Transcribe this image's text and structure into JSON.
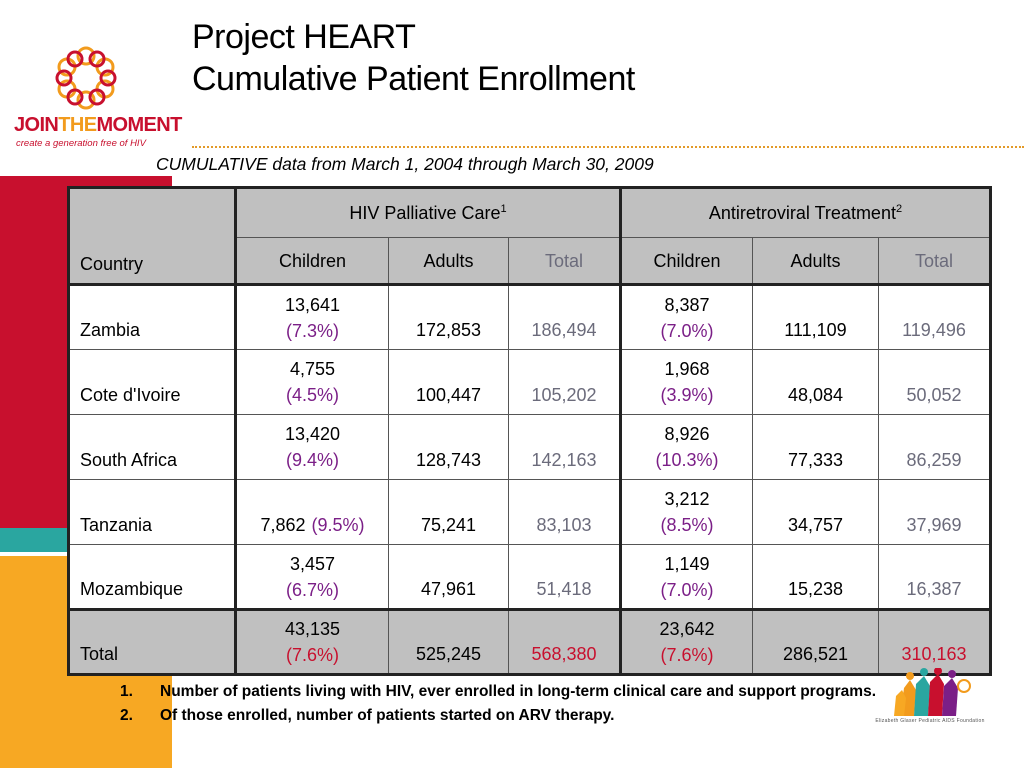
{
  "logo": {
    "word_join": "JOIN",
    "word_the": "THE",
    "word_moment": "MOMENT",
    "tagline": "create a generation free of HIV",
    "icon": "flower-ring-logo"
  },
  "title": {
    "line1": "Project HEART",
    "line2": "Cumulative Patient Enrollment"
  },
  "subtitle": "CUMULATIVE data from March 1, 2004 through March 30, 2009",
  "table": {
    "country_header": "Country",
    "group1": {
      "label": "HIV Palliative Care",
      "sup": "1"
    },
    "group2": {
      "label": "Antiretroviral Treatment",
      "sup": "2"
    },
    "subheaders": [
      "Children",
      "Adults",
      "Total",
      "Children",
      "Adults",
      "Total"
    ],
    "rows": [
      {
        "country": "Zambia",
        "pc_children": "13,641",
        "pc_children_pct": "(7.3%)",
        "pc_adults": "172,853",
        "pc_total": "186,494",
        "art_children": "8,387",
        "art_children_pct": "(7.0%)",
        "art_adults": "111,109",
        "art_total": "119,496"
      },
      {
        "country": "Cote d'Ivoire",
        "pc_children": "4,755",
        "pc_children_pct": "(4.5%)",
        "pc_adults": "100,447",
        "pc_total": "105,202",
        "art_children": "1,968",
        "art_children_pct": "(3.9%)",
        "art_adults": "48,084",
        "art_total": "50,052"
      },
      {
        "country": "South Africa",
        "pc_children": "13,420",
        "pc_children_pct": "(9.4%)",
        "pc_adults": "128,743",
        "pc_total": "142,163",
        "art_children": "8,926",
        "art_children_pct": "(10.3%)",
        "art_adults": "77,333",
        "art_total": "86,259"
      },
      {
        "country": "Tanzania",
        "pc_children": "7,862",
        "pc_children_pct": "(9.5%)",
        "pc_adults": "75,241",
        "pc_total": "83,103",
        "art_children": "3,212",
        "art_children_pct": "(8.5%)",
        "art_adults": "34,757",
        "art_total": "37,969"
      },
      {
        "country": "Mozambique",
        "pc_children": "3,457",
        "pc_children_pct": "(6.7%)",
        "pc_adults": "47,961",
        "pc_total": "51,418",
        "art_children": "1,149",
        "art_children_pct": "(7.0%)",
        "art_adults": "15,238",
        "art_total": "16,387"
      }
    ],
    "total": {
      "country": "Total",
      "pc_children": "43,135",
      "pc_children_pct": "(7.6%)",
      "pc_adults": "525,245",
      "pc_total": "568,380",
      "art_children": "23,642",
      "art_children_pct": "(7.6%)",
      "art_adults": "286,521",
      "art_total": "310,163"
    }
  },
  "footnotes": [
    {
      "num": "1.",
      "text": "Number of patients living with HIV, ever enrolled in long-term clinical care and support programs."
    },
    {
      "num": "2.",
      "text": "Of those enrolled, number of patients started on ARV therapy."
    }
  ],
  "foundation_logo": {
    "text": "Elizabeth Glaser Pediatric AIDS Foundation",
    "icon": "children-figures-icon"
  },
  "colors": {
    "crimson": "#c8102e",
    "teal": "#2aa6a0",
    "orange": "#f7a823",
    "purple": "#7b1f87",
    "grey_total": "#6b6b7b",
    "header_grey": "#c0c0c0"
  }
}
